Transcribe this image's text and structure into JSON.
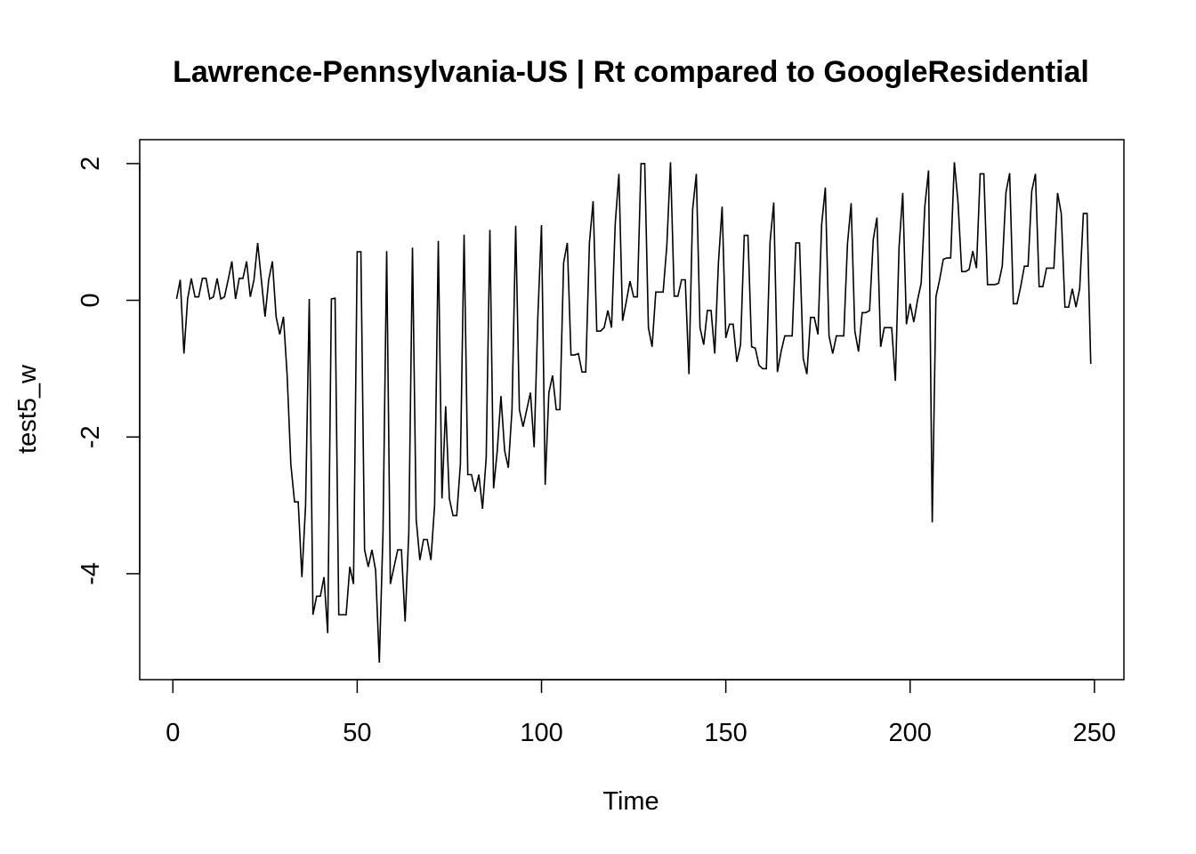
{
  "chart_data": {
    "type": "line",
    "title": "Lawrence-Pennsylvania-US | Rt compared to GoogleResidential",
    "xlabel": "Time",
    "ylabel": "test5_w",
    "xlim": [
      -9,
      258
    ],
    "ylim": [
      -5.55,
      2.35
    ],
    "x_ticks": [
      0,
      50,
      100,
      150,
      200,
      250
    ],
    "y_ticks": [
      -4,
      -2,
      0,
      2
    ],
    "grid": false,
    "line_color": "#000000",
    "series": [
      {
        "x_start": 1,
        "x_step": 1,
        "values": [
          0.02,
          0.3,
          -0.78,
          0.02,
          0.32,
          0.05,
          0.05,
          0.32,
          0.32,
          0.02,
          0.05,
          0.32,
          0.02,
          0.05,
          0.3,
          0.57,
          0.02,
          0.32,
          0.32,
          0.57,
          0.05,
          0.3,
          0.84,
          0.3,
          -0.24,
          0.3,
          0.57,
          -0.24,
          -0.5,
          -0.24,
          -1.1,
          -2.4,
          -2.95,
          -2.95,
          -4.05,
          -3.0,
          0.02,
          -4.6,
          -4.33,
          -4.33,
          -4.05,
          -4.87,
          0.02,
          0.03,
          -4.6,
          -4.6,
          -4.6,
          -3.9,
          -4.15,
          0.71,
          0.71,
          -3.65,
          -3.9,
          -3.65,
          -3.95,
          -5.3,
          -3.4,
          0.72,
          -4.15,
          -3.9,
          -3.65,
          -3.65,
          -4.7,
          -3.4,
          0.77,
          -3.2,
          -3.8,
          -3.5,
          -3.5,
          -3.8,
          -3.0,
          0.87,
          -2.9,
          -1.55,
          -2.9,
          -3.15,
          -3.15,
          -2.4,
          0.96,
          -2.55,
          -2.55,
          -2.8,
          -2.55,
          -3.05,
          -2.3,
          1.03,
          -2.75,
          -2.2,
          -1.4,
          -2.2,
          -2.45,
          -1.6,
          1.09,
          -1.6,
          -1.85,
          -1.6,
          -1.35,
          -2.15,
          -0.25,
          1.1,
          -2.7,
          -1.35,
          -1.1,
          -1.6,
          -1.6,
          0.55,
          0.84,
          -0.8,
          -0.8,
          -0.78,
          -1.05,
          -1.05,
          0.84,
          1.45,
          -0.45,
          -0.45,
          -0.4,
          -0.15,
          -0.4,
          1.12,
          1.85,
          -0.3,
          -0.02,
          0.28,
          0.05,
          0.05,
          2.0,
          2.0,
          -0.4,
          -0.68,
          0.12,
          0.12,
          0.12,
          0.8,
          2.02,
          0.06,
          0.06,
          0.3,
          0.3,
          -1.08,
          1.33,
          1.85,
          -0.4,
          -0.65,
          -0.15,
          -0.15,
          -0.78,
          0.55,
          1.37,
          -0.55,
          -0.35,
          -0.35,
          -0.9,
          -0.65,
          0.95,
          0.95,
          -0.68,
          -0.7,
          -0.95,
          -1.0,
          -1.0,
          0.85,
          1.43,
          -1.05,
          -0.75,
          -0.52,
          -0.52,
          -0.52,
          0.84,
          0.84,
          -0.85,
          -1.08,
          -0.25,
          -0.25,
          -0.5,
          1.11,
          1.65,
          -0.52,
          -0.78,
          -0.52,
          -0.52,
          -0.52,
          0.82,
          1.42,
          -0.45,
          -0.75,
          -0.18,
          -0.18,
          -0.15,
          0.89,
          1.21,
          -0.68,
          -0.4,
          -0.4,
          -0.4,
          -1.18,
          0.78,
          1.57,
          -0.35,
          -0.05,
          -0.32,
          0.0,
          0.25,
          1.38,
          1.9,
          -3.25,
          0.05,
          0.3,
          0.6,
          0.62,
          0.62,
          2.02,
          1.43,
          0.42,
          0.42,
          0.45,
          0.72,
          0.47,
          1.85,
          1.85,
          0.23,
          0.23,
          0.23,
          0.25,
          0.5,
          1.58,
          1.86,
          -0.05,
          -0.05,
          0.2,
          0.5,
          0.5,
          1.6,
          1.85,
          0.2,
          0.2,
          0.47,
          0.47,
          0.47,
          1.57,
          1.27,
          -0.1,
          -0.1,
          0.17,
          -0.1,
          0.17,
          1.27,
          1.27,
          -0.93
        ]
      }
    ]
  }
}
